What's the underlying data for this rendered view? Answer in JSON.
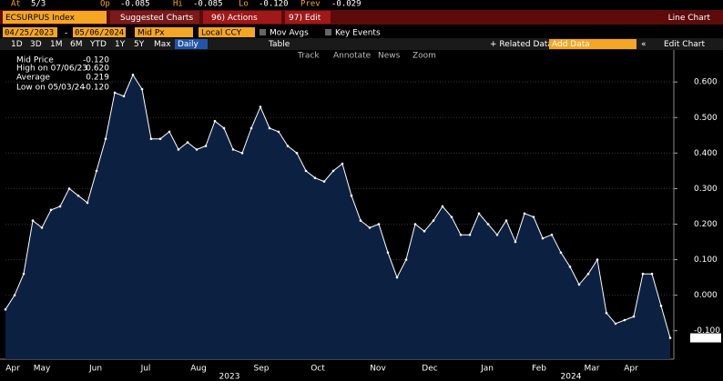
{
  "header": {
    "quote": [
      {
        "label": "At",
        "value": "5/3"
      },
      {
        "label": "Op",
        "value": "-0.085"
      },
      {
        "label": "Hi",
        "value": "-0.085"
      },
      {
        "label": "Lo",
        "value": "-0.120"
      },
      {
        "label": "Prev",
        "value": "-0.029"
      }
    ],
    "ticker": "ECSURPUS Index",
    "menus": [
      "Suggested Charts",
      "96) Actions",
      "97) Edit"
    ],
    "chart_kind": "Line Chart"
  },
  "toolbar": {
    "start_date": "04/25/2023",
    "end_date": "05/06/2024",
    "field": "Mid Px",
    "currency": "Local CCY",
    "toggles": [
      "Mov Avgs",
      "Key Events"
    ],
    "periods": [
      "1D",
      "3D",
      "1M",
      "6M",
      "YTD",
      "1Y",
      "5Y",
      "Max"
    ],
    "frequency": "Daily",
    "table": "Table",
    "related": "+ Related Data",
    "add_data": "Add Data",
    "edit_chart": "Edit Chart",
    "tools": [
      "Track",
      "Annotate",
      "News",
      "Zoom"
    ]
  },
  "chart_data": {
    "type": "line",
    "stats": [
      {
        "label": "Mid Price",
        "value": "-0.120"
      },
      {
        "label": "High on 07/06/23",
        "value": "0.620"
      },
      {
        "label": "Average",
        "value": "0.219"
      },
      {
        "label": "Low on 05/03/24",
        "value": "-0.120"
      }
    ],
    "last_value_label": "-0.120",
    "series": [
      {
        "name": "Mid Price",
        "color": "#ffffff",
        "fill": "#0c2142",
        "values": [
          -0.04,
          0.0,
          0.06,
          0.21,
          0.19,
          0.24,
          0.25,
          0.3,
          0.28,
          0.26,
          0.35,
          0.44,
          0.57,
          0.56,
          0.62,
          0.58,
          0.44,
          0.44,
          0.46,
          0.41,
          0.43,
          0.41,
          0.42,
          0.49,
          0.47,
          0.41,
          0.4,
          0.47,
          0.53,
          0.47,
          0.46,
          0.42,
          0.4,
          0.35,
          0.33,
          0.32,
          0.35,
          0.37,
          0.28,
          0.21,
          0.19,
          0.2,
          0.12,
          0.05,
          0.1,
          0.2,
          0.18,
          0.21,
          0.25,
          0.22,
          0.17,
          0.17,
          0.23,
          0.2,
          0.17,
          0.21,
          0.15,
          0.23,
          0.22,
          0.16,
          0.17,
          0.12,
          0.08,
          0.03,
          0.06,
          0.1,
          -0.05,
          -0.08,
          -0.07,
          -0.06,
          0.06,
          0.06,
          -0.03,
          -0.12
        ]
      }
    ],
    "xlim": [
      0,
      73
    ],
    "xticks": [
      {
        "value": 0.8,
        "label": "Apr"
      },
      {
        "value": 4,
        "label": "May"
      },
      {
        "value": 9.9,
        "label": "Jun"
      },
      {
        "value": 15.4,
        "label": "Jul"
      },
      {
        "value": 21.2,
        "label": "Aug"
      },
      {
        "value": 28.1,
        "label": "Sep"
      },
      {
        "value": 34.3,
        "label": "Oct"
      },
      {
        "value": 40.9,
        "label": "Nov"
      },
      {
        "value": 46.6,
        "label": "Dec"
      },
      {
        "value": 52.9,
        "label": "Jan"
      },
      {
        "value": 58.6,
        "label": "Feb"
      },
      {
        "value": 64.4,
        "label": "Mar"
      },
      {
        "value": 68.7,
        "label": "Apr"
      }
    ],
    "year_labels": [
      {
        "value": 24.6,
        "label": "2023"
      },
      {
        "value": 62.1,
        "label": "2024"
      }
    ],
    "ylim": [
      -0.18,
      0.69
    ],
    "yticks": [
      {
        "value": -0.1,
        "label": "-0.100"
      },
      {
        "value": 0,
        "label": "0.000"
      },
      {
        "value": 0.1,
        "label": "0.100"
      },
      {
        "value": 0.2,
        "label": "0.200"
      },
      {
        "value": 0.3,
        "label": "0.300"
      },
      {
        "value": 0.4,
        "label": "0.400"
      },
      {
        "value": 0.5,
        "label": "0.500"
      },
      {
        "value": 0.6,
        "label": "0.600"
      }
    ],
    "grid": true
  }
}
